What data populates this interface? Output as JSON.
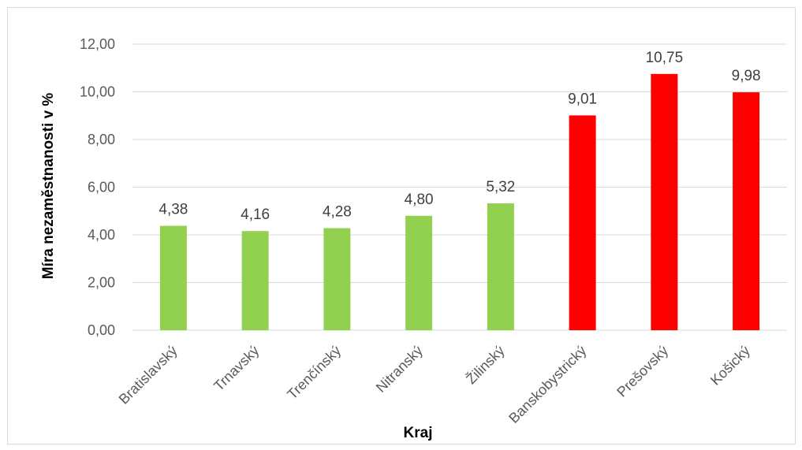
{
  "chart_data": {
    "type": "bar",
    "title": "",
    "xlabel": "Kraj",
    "ylabel": "Míra nezaměstnanosti v %",
    "categories": [
      "Bratislavský",
      "Trnavský",
      "Trenčínský",
      "Nitranský",
      "Žilinský",
      "Banskobystrický",
      "Prešovský",
      "Košický"
    ],
    "values": [
      4.38,
      4.16,
      4.28,
      4.8,
      5.32,
      9.01,
      10.75,
      9.98
    ],
    "data_labels": [
      "4,38",
      "4,16",
      "4,28",
      "4,80",
      "5,32",
      "9,01",
      "10,75",
      "9,98"
    ],
    "bar_colors": [
      "#92d050",
      "#92d050",
      "#92d050",
      "#92d050",
      "#92d050",
      "#ff0000",
      "#ff0000",
      "#ff0000"
    ],
    "ylim": [
      0,
      12
    ],
    "yticks": [
      0,
      2,
      4,
      6,
      8,
      10,
      12
    ],
    "ytick_labels": [
      "0,00",
      "2,00",
      "4,00",
      "6,00",
      "8,00",
      "10,00",
      "12,00"
    ],
    "grid": true,
    "legend": "none",
    "colors": {
      "gridline": "#d9d9d9",
      "green": "#92d050",
      "red": "#ff0000"
    }
  }
}
